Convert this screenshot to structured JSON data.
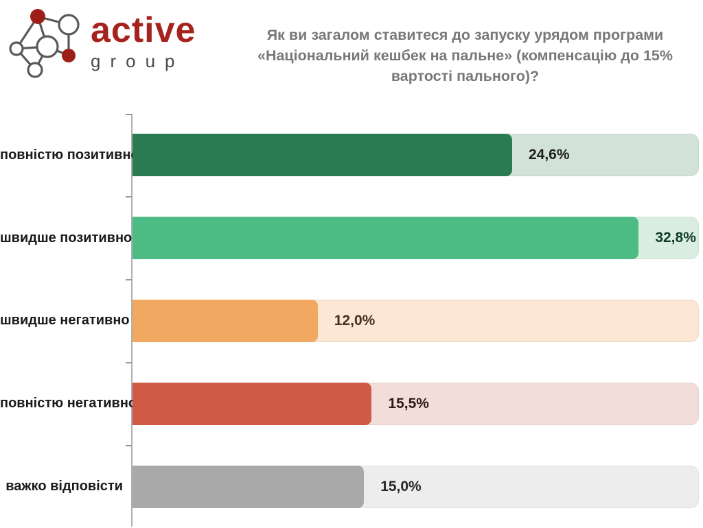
{
  "logo": {
    "brand": "active",
    "sub": "group",
    "brand_color": "#a6231d",
    "sub_color": "#4a4a4a",
    "node_color": "#9e1f1a",
    "edge_color": "#595959"
  },
  "title": {
    "text": "Як ви загалом ставитеся до запуску урядом програми «Національний кешбек на пальне» (компенсацію до 15% вартості пального)?",
    "color": "#787878"
  },
  "chart_data": {
    "type": "bar",
    "orientation": "horizontal",
    "title": "Як ви загалом ставитеся до запуску урядом програми «Національний кешбек на пальне» (компенсацію до 15% вартості пального)?",
    "categories": [
      "повністю позитивно",
      "швидше позитивно",
      "швидше негативно",
      "повністю негативно",
      "важко відповісти"
    ],
    "values": [
      24.6,
      32.8,
      12.0,
      15.5,
      15.0
    ],
    "value_labels": [
      "24,6%",
      "32,8%",
      "12,0%",
      "15,5%",
      "15,0%"
    ],
    "xlim": [
      0,
      36.7
    ],
    "grid": false,
    "legend": false,
    "bar_colors": [
      "#2a7b51",
      "#4dbb84",
      "#f1a961",
      "#cf5a45",
      "#a9a9a9"
    ],
    "track_colors": [
      "#d2e2d8",
      "#d9ede1",
      "#fbe7d3",
      "#f3ddd9",
      "#ededed"
    ],
    "value_text_colors": [
      "#1f1f1f",
      "#123c28",
      "#45301f",
      "#2d1b16",
      "#262626"
    ],
    "axis_color": "#afafaf"
  }
}
